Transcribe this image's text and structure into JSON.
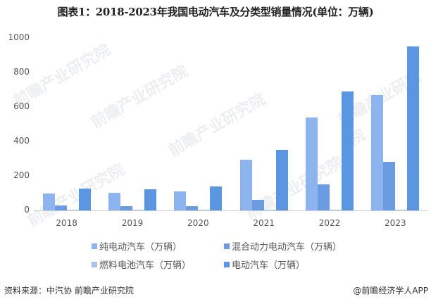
{
  "title": "图表1：2018-2023年我国电动汽车及分类型销量情况(单位：万辆)",
  "chart_data": {
    "type": "bar",
    "title": "图表1：2018-2023年我国电动汽车及分类型销量情况(单位：万辆)",
    "xlabel": "",
    "ylabel": "",
    "ylim": [
      0,
      1000
    ],
    "yticks": [
      0,
      200,
      400,
      600,
      800,
      1000
    ],
    "grid": false,
    "legend_position": "bottom",
    "categories": [
      "2018",
      "2019",
      "2020",
      "2021",
      "2022",
      "2023"
    ],
    "series": [
      {
        "name": "纯电动汽车（万辆）",
        "color": "#8db4ee",
        "values": [
          98,
          102,
          111,
          292,
          537,
          670
        ]
      },
      {
        "name": "混合动力电动汽车（万辆）",
        "color": "#6b9be0",
        "values": [
          27,
          26,
          25,
          60,
          152,
          281
        ]
      },
      {
        "name": "燃料电池汽车（万辆）",
        "color": "#a9c4ea",
        "values": [
          0.2,
          0.3,
          0.1,
          0.2,
          0.3,
          0.6
        ]
      },
      {
        "name": "电动汽车（万辆）",
        "color": "#5b96e2",
        "values": [
          126,
          121,
          137,
          352,
          689,
          950
        ]
      }
    ]
  },
  "legend": [
    {
      "label": "纯电动汽车（万辆）",
      "color": "#8db4ee"
    },
    {
      "label": "混合动力电动汽车（万辆）",
      "color": "#6b9be0"
    },
    {
      "label": "燃料电池汽车（万辆）",
      "color": "#a9c4ea"
    },
    {
      "label": "电动汽车（万辆）",
      "color": "#5b96e2"
    }
  ],
  "footer": {
    "source": "资料来源：中汽协 前瞻产业研究院",
    "credit": "@前瞻经济学人APP"
  },
  "watermark": "前瞻产业研究院"
}
